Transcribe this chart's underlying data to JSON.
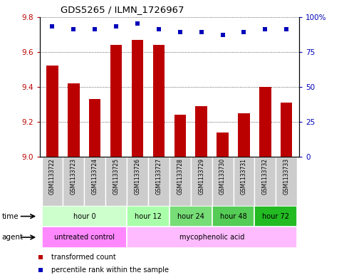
{
  "title": "GDS5265 / ILMN_1726967",
  "samples": [
    "GSM1133722",
    "GSM1133723",
    "GSM1133724",
    "GSM1133725",
    "GSM1133726",
    "GSM1133727",
    "GSM1133728",
    "GSM1133729",
    "GSM1133730",
    "GSM1133731",
    "GSM1133732",
    "GSM1133733"
  ],
  "transformed_count": [
    9.52,
    9.42,
    9.33,
    9.64,
    9.67,
    9.64,
    9.24,
    9.29,
    9.14,
    9.25,
    9.4,
    9.31
  ],
  "percentile_rank": [
    93,
    91,
    91,
    93,
    95,
    91,
    89,
    89,
    87,
    89,
    91,
    91
  ],
  "ylim_left": [
    9.0,
    9.8
  ],
  "ylim_right": [
    0,
    100
  ],
  "yticks_left": [
    9.0,
    9.2,
    9.4,
    9.6,
    9.8
  ],
  "yticks_right": [
    0,
    25,
    50,
    75,
    100
  ],
  "bar_color": "#bb0000",
  "dot_color": "#0000bb",
  "time_groups": [
    {
      "label": "hour 0",
      "start": 0,
      "end": 3,
      "color": "#ccffcc"
    },
    {
      "label": "hour 12",
      "start": 4,
      "end": 5,
      "color": "#aaffaa"
    },
    {
      "label": "hour 24",
      "start": 6,
      "end": 7,
      "color": "#77dd77"
    },
    {
      "label": "hour 48",
      "start": 8,
      "end": 9,
      "color": "#55cc55"
    },
    {
      "label": "hour 72",
      "start": 10,
      "end": 11,
      "color": "#22bb22"
    }
  ],
  "agent_groups": [
    {
      "label": "untreated control",
      "start": 0,
      "end": 3,
      "color": "#ff88ff"
    },
    {
      "label": "mycophenolic acid",
      "start": 4,
      "end": 11,
      "color": "#ffbbff"
    }
  ],
  "bar_color_hex": "#bb0000",
  "dot_color_hex": "#0000bb",
  "sample_box_color": "#cccccc",
  "background_color": "#ffffff",
  "grid_color": "#333333"
}
